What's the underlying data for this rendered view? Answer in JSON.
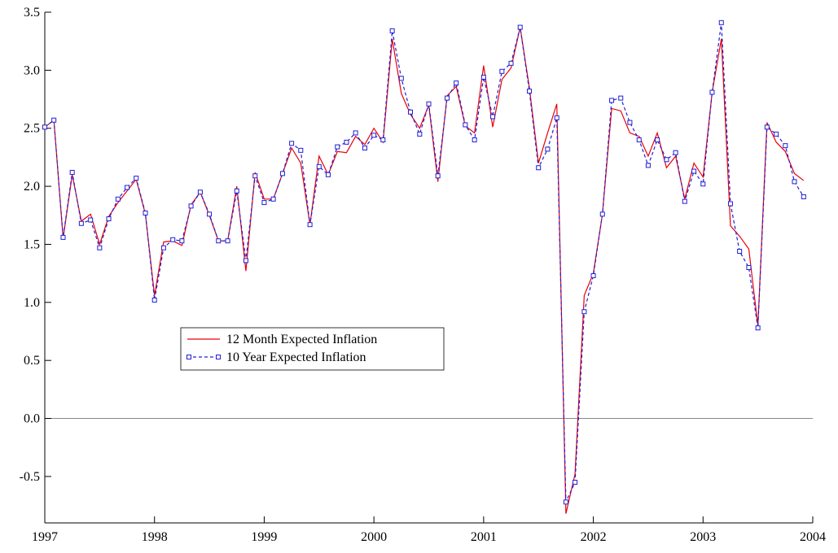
{
  "chart_data": {
    "type": "line",
    "x": [
      1997,
      1997.083,
      1997.167,
      1997.25,
      1997.333,
      1997.417,
      1997.5,
      1997.583,
      1997.667,
      1997.75,
      1997.833,
      1997.917,
      1998,
      1998.083,
      1998.167,
      1998.25,
      1998.333,
      1998.417,
      1998.5,
      1998.583,
      1998.667,
      1998.75,
      1998.833,
      1998.917,
      1999,
      1999.083,
      1999.167,
      1999.25,
      1999.333,
      1999.417,
      1999.5,
      1999.583,
      1999.667,
      1999.75,
      1999.833,
      1999.917,
      2000,
      2000.083,
      2000.167,
      2000.25,
      2000.333,
      2000.417,
      2000.5,
      2000.583,
      2000.667,
      2000.75,
      2000.833,
      2000.917,
      2001,
      2001.083,
      2001.167,
      2001.25,
      2001.333,
      2001.417,
      2001.5,
      2001.583,
      2001.667,
      2001.75,
      2001.833,
      2001.917,
      2002,
      2002.083,
      2002.167,
      2002.25,
      2002.333,
      2002.417,
      2002.5,
      2002.583,
      2002.667,
      2002.75,
      2002.833,
      2002.917,
      2003,
      2003.083,
      2003.167,
      2003.25,
      2003.333,
      2003.417,
      2003.5,
      2003.583,
      2003.667,
      2003.75,
      2003.833,
      2003.917
    ],
    "series": [
      {
        "name": "12 Month Expected Inflation",
        "color": "#e8000b",
        "style": "solid",
        "markers": false,
        "values": [
          2.51,
          2.57,
          1.55,
          2.1,
          1.7,
          1.76,
          1.5,
          1.74,
          1.86,
          1.96,
          2.06,
          1.76,
          1.06,
          1.52,
          1.53,
          1.49,
          1.84,
          1.95,
          1.75,
          1.53,
          1.53,
          2.0,
          1.27,
          2.12,
          1.89,
          1.89,
          2.11,
          2.33,
          2.2,
          1.67,
          2.26,
          2.1,
          2.3,
          2.29,
          2.43,
          2.36,
          2.5,
          2.38,
          3.27,
          2.8,
          2.62,
          2.5,
          2.7,
          2.04,
          2.78,
          2.86,
          2.52,
          2.46,
          3.04,
          2.51,
          2.92,
          3.02,
          3.37,
          2.85,
          2.2,
          2.46,
          2.71,
          -0.82,
          -0.48,
          1.06,
          1.25,
          1.76,
          2.67,
          2.65,
          2.46,
          2.43,
          2.26,
          2.46,
          2.16,
          2.26,
          1.89,
          2.2,
          2.08,
          2.81,
          3.27,
          1.66,
          1.57,
          1.46,
          0.8,
          2.55,
          2.38,
          2.3,
          2.11,
          2.05
        ]
      },
      {
        "name": "10 Year Expected Inflation",
        "color": "#1f1fd6",
        "style": "dashed",
        "markers": true,
        "values": [
          2.51,
          2.57,
          1.56,
          2.12,
          1.68,
          1.71,
          1.47,
          1.72,
          1.89,
          1.99,
          2.07,
          1.77,
          1.02,
          1.47,
          1.54,
          1.53,
          1.83,
          1.95,
          1.76,
          1.53,
          1.53,
          1.96,
          1.36,
          2.09,
          1.86,
          1.89,
          2.11,
          2.37,
          2.31,
          1.67,
          2.17,
          2.1,
          2.34,
          2.38,
          2.46,
          2.33,
          2.44,
          2.4,
          3.34,
          2.93,
          2.64,
          2.45,
          2.71,
          2.09,
          2.76,
          2.89,
          2.53,
          2.4,
          2.94,
          2.6,
          2.99,
          3.06,
          3.37,
          2.82,
          2.16,
          2.32,
          2.59,
          -0.72,
          -0.55,
          0.92,
          1.23,
          1.76,
          2.74,
          2.76,
          2.55,
          2.4,
          2.18,
          2.4,
          2.23,
          2.29,
          1.87,
          2.13,
          2.02,
          2.81,
          3.41,
          1.85,
          1.44,
          1.3,
          0.78,
          2.51,
          2.45,
          2.35,
          2.04,
          1.91
        ]
      }
    ],
    "xlim": [
      1997,
      2004
    ],
    "xticks": [
      1997,
      1998,
      1999,
      2000,
      2001,
      2002,
      2003,
      2004
    ],
    "ylim": [
      -0.9,
      3.5
    ],
    "yticks": [
      -0.5,
      {
        "value": 0,
        "label": "0.0"
      },
      0.5,
      {
        "value": 1,
        "label": "1.0"
      },
      1.5,
      {
        "value": 2,
        "label": "2.0"
      },
      2.5,
      {
        "value": 3,
        "label": "3.0"
      },
      3.5
    ],
    "zero_line": true,
    "grid": false,
    "legend_position": "center left"
  }
}
